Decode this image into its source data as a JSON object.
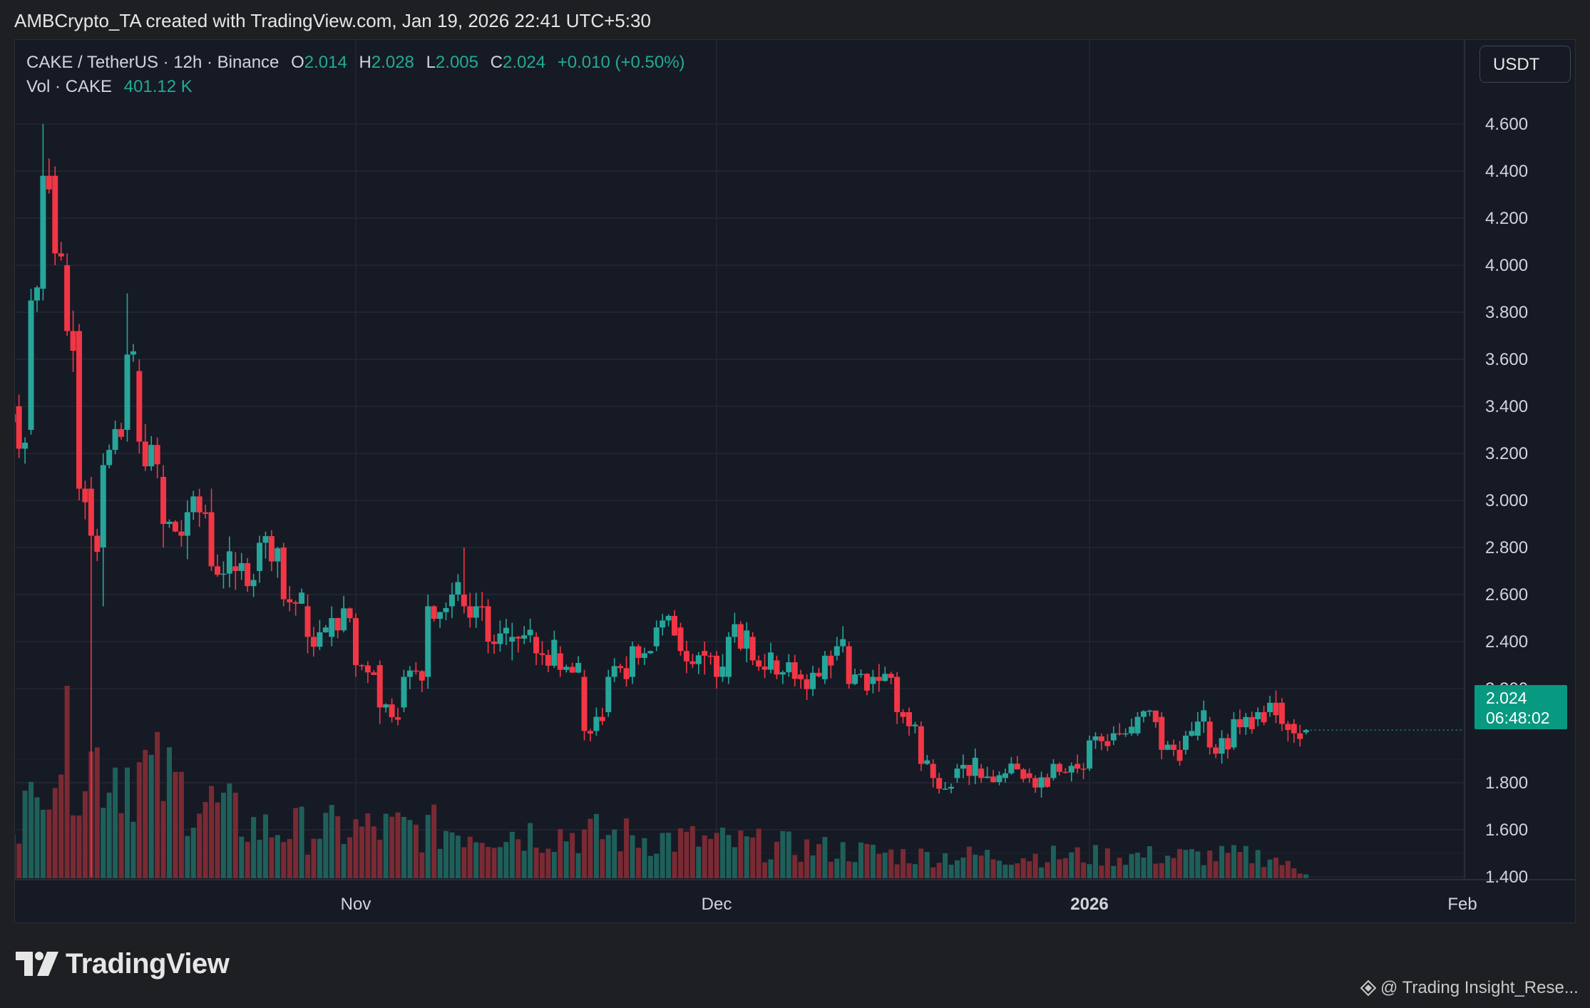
{
  "header": {
    "attribution": "AMBCrypto_TA created with TradingView.com, Jan 19, 2026 22:41 UTC+5:30"
  },
  "legend": {
    "symbol": "CAKE / TetherUS · 12h · Binance",
    "o_label": "O",
    "o_value": "2.014",
    "h_label": "H",
    "h_value": "2.028",
    "l_label": "L",
    "l_value": "2.005",
    "c_label": "C",
    "c_value": "2.024",
    "change": "+0.010 (+0.50%)",
    "vol_label": "Vol · CAKE",
    "vol_value": "401.12 K"
  },
  "toolbar": {
    "unit_label": "USDT"
  },
  "last_price": {
    "price": "2.024",
    "countdown": "06:48:02"
  },
  "footer": {
    "brand": "TradingView",
    "credit": "@ Trading Insight_Rese..."
  },
  "colors": {
    "up": "#26a69a",
    "down": "#f23645",
    "background": "#161a25",
    "grid": "#232735",
    "price_tag": "#089981"
  },
  "icons": {
    "logo": "tradingview-logo-icon",
    "credit": "diamond-icon"
  },
  "chart_data": {
    "type": "candlestick",
    "interval": "12h",
    "y_axis": {
      "ticks": [
        "4.600",
        "4.400",
        "4.200",
        "4.000",
        "3.800",
        "3.600",
        "3.400",
        "3.200",
        "3.000",
        "2.800",
        "2.600",
        "2.400",
        "2.200",
        "1.800",
        "1.600",
        "1.400"
      ],
      "range": [
        1.2,
        4.8
      ]
    },
    "x_axis": {
      "labels": [
        "Nov",
        "Dec",
        "2026",
        "Feb"
      ]
    },
    "ohlc_anchors": [
      {
        "date": "2025-10-02",
        "open": 3.72,
        "high": 3.8,
        "low": 3.38,
        "close": 3.42
      },
      {
        "date": "2025-10-04",
        "open": 3.4,
        "high": 3.45,
        "low": 3.18,
        "close": 3.22
      },
      {
        "date": "2025-10-05",
        "open": 3.3,
        "high": 3.9,
        "low": 3.28,
        "close": 3.85
      },
      {
        "date": "2025-10-06",
        "open": 3.9,
        "high": 4.6,
        "low": 3.85,
        "close": 4.38
      },
      {
        "date": "2025-10-07",
        "open": 4.38,
        "high": 4.42,
        "low": 4.0,
        "close": 4.05
      },
      {
        "date": "2025-10-08",
        "open": 4.0,
        "high": 4.05,
        "low": 3.7,
        "close": 3.72
      },
      {
        "date": "2025-10-09",
        "open": 3.72,
        "high": 3.75,
        "low": 3.0,
        "close": 3.05
      },
      {
        "date": "2025-10-10",
        "open": 3.05,
        "high": 3.1,
        "low": 1.4,
        "close": 2.85
      },
      {
        "date": "2025-10-11",
        "open": 2.8,
        "high": 3.2,
        "low": 2.55,
        "close": 3.15
      },
      {
        "date": "2025-10-13",
        "open": 3.3,
        "high": 3.88,
        "low": 3.25,
        "close": 3.62
      },
      {
        "date": "2025-10-14",
        "open": 3.55,
        "high": 3.6,
        "low": 3.2,
        "close": 3.25
      },
      {
        "date": "2025-10-16",
        "open": 3.1,
        "high": 3.15,
        "low": 2.8,
        "close": 2.9
      },
      {
        "date": "2025-10-18",
        "open": 2.85,
        "high": 3.0,
        "low": 2.75,
        "close": 2.95
      },
      {
        "date": "2025-10-20",
        "open": 2.95,
        "high": 3.05,
        "low": 2.7,
        "close": 2.72
      },
      {
        "date": "2025-10-22",
        "open": 2.72,
        "high": 2.78,
        "low": 2.62,
        "close": 2.7
      },
      {
        "date": "2025-10-24",
        "open": 2.7,
        "high": 2.85,
        "low": 2.65,
        "close": 2.82
      },
      {
        "date": "2025-10-26",
        "open": 2.8,
        "high": 2.82,
        "low": 2.55,
        "close": 2.58
      },
      {
        "date": "2025-10-28",
        "open": 2.55,
        "high": 2.6,
        "low": 2.35,
        "close": 2.42
      },
      {
        "date": "2025-10-30",
        "open": 2.42,
        "high": 2.55,
        "low": 2.38,
        "close": 2.5
      },
      {
        "date": "2025-11-01",
        "open": 2.5,
        "high": 2.52,
        "low": 2.25,
        "close": 2.3
      },
      {
        "date": "2025-11-03",
        "open": 2.3,
        "high": 2.32,
        "low": 2.05,
        "close": 2.12
      },
      {
        "date": "2025-11-05",
        "open": 2.12,
        "high": 2.28,
        "low": 2.1,
        "close": 2.25
      },
      {
        "date": "2025-11-07",
        "open": 2.25,
        "high": 2.6,
        "low": 2.2,
        "close": 2.55
      },
      {
        "date": "2025-11-09",
        "open": 2.55,
        "high": 2.65,
        "low": 2.5,
        "close": 2.6
      },
      {
        "date": "2025-11-10",
        "open": 2.6,
        "high": 2.8,
        "low": 2.52,
        "close": 2.55
      },
      {
        "date": "2025-11-12",
        "open": 2.55,
        "high": 2.58,
        "low": 2.35,
        "close": 2.4
      },
      {
        "date": "2025-11-14",
        "open": 2.4,
        "high": 2.48,
        "low": 2.32,
        "close": 2.42
      },
      {
        "date": "2025-11-16",
        "open": 2.42,
        "high": 2.44,
        "low": 2.3,
        "close": 2.35
      },
      {
        "date": "2025-11-18",
        "open": 2.35,
        "high": 2.38,
        "low": 2.25,
        "close": 2.28
      },
      {
        "date": "2025-11-20",
        "open": 2.25,
        "high": 2.28,
        "low": 1.98,
        "close": 2.02
      },
      {
        "date": "2025-11-21",
        "open": 2.02,
        "high": 2.12,
        "low": 2.0,
        "close": 2.08
      },
      {
        "date": "2025-11-22",
        "open": 2.1,
        "high": 2.28,
        "low": 2.08,
        "close": 2.25
      },
      {
        "date": "2025-11-24",
        "open": 2.25,
        "high": 2.4,
        "low": 2.22,
        "close": 2.38
      },
      {
        "date": "2025-11-26",
        "open": 2.38,
        "high": 2.49,
        "low": 2.36,
        "close": 2.46
      },
      {
        "date": "2025-11-28",
        "open": 2.46,
        "high": 2.48,
        "low": 2.34,
        "close": 2.36
      },
      {
        "date": "2025-11-30",
        "open": 2.36,
        "high": 2.4,
        "low": 2.26,
        "close": 2.34
      },
      {
        "date": "2025-12-01",
        "open": 2.34,
        "high": 2.36,
        "low": 2.2,
        "close": 2.25
      },
      {
        "date": "2025-12-02",
        "open": 2.25,
        "high": 2.44,
        "low": 2.22,
        "close": 2.42
      },
      {
        "date": "2025-12-04",
        "open": 2.42,
        "high": 2.44,
        "low": 2.3,
        "close": 2.32
      },
      {
        "date": "2025-12-06",
        "open": 2.32,
        "high": 2.34,
        "low": 2.24,
        "close": 2.26
      },
      {
        "date": "2025-12-08",
        "open": 2.26,
        "high": 2.28,
        "low": 2.2,
        "close": 2.24
      },
      {
        "date": "2025-12-10",
        "open": 2.24,
        "high": 2.36,
        "low": 2.22,
        "close": 2.34
      },
      {
        "date": "2025-12-11",
        "open": 2.34,
        "high": 2.42,
        "low": 2.32,
        "close": 2.38
      },
      {
        "date": "2025-12-12",
        "open": 2.38,
        "high": 2.4,
        "low": 2.2,
        "close": 2.22
      },
      {
        "date": "2025-12-14",
        "open": 2.22,
        "high": 2.28,
        "low": 2.18,
        "close": 2.25
      },
      {
        "date": "2025-12-16",
        "open": 2.25,
        "high": 2.27,
        "low": 2.05,
        "close": 2.1
      },
      {
        "date": "2025-12-17",
        "open": 2.1,
        "high": 2.12,
        "low": 2.0,
        "close": 2.04
      },
      {
        "date": "2025-12-18",
        "open": 2.04,
        "high": 2.06,
        "low": 1.85,
        "close": 1.88
      },
      {
        "date": "2025-12-19",
        "open": 1.88,
        "high": 1.9,
        "low": 1.78,
        "close": 1.82
      },
      {
        "date": "2025-12-21",
        "open": 1.82,
        "high": 1.88,
        "low": 1.8,
        "close": 1.86
      },
      {
        "date": "2025-12-23",
        "open": 1.86,
        "high": 1.88,
        "low": 1.8,
        "close": 1.82
      },
      {
        "date": "2025-12-25",
        "open": 1.82,
        "high": 1.86,
        "low": 1.8,
        "close": 1.84
      },
      {
        "date": "2025-12-27",
        "open": 1.84,
        "high": 1.86,
        "low": 1.8,
        "close": 1.82
      },
      {
        "date": "2025-12-29",
        "open": 1.82,
        "high": 1.9,
        "low": 1.81,
        "close": 1.88
      },
      {
        "date": "2025-12-31",
        "open": 1.88,
        "high": 1.92,
        "low": 1.84,
        "close": 1.86
      },
      {
        "date": "2026-01-01",
        "open": 1.86,
        "high": 2.0,
        "low": 1.85,
        "close": 1.98
      },
      {
        "date": "2026-01-03",
        "open": 1.98,
        "high": 2.04,
        "low": 1.96,
        "close": 2.01
      },
      {
        "date": "2026-01-05",
        "open": 2.01,
        "high": 2.1,
        "low": 2.0,
        "close": 2.08
      },
      {
        "date": "2026-01-07",
        "open": 2.08,
        "high": 2.1,
        "low": 1.9,
        "close": 1.94
      },
      {
        "date": "2026-01-09",
        "open": 1.94,
        "high": 2.02,
        "low": 1.92,
        "close": 2.0
      },
      {
        "date": "2026-01-10",
        "open": 2.0,
        "high": 2.1,
        "low": 1.98,
        "close": 2.06
      },
      {
        "date": "2026-01-11",
        "open": 2.06,
        "high": 2.08,
        "low": 1.92,
        "close": 1.95
      },
      {
        "date": "2026-01-13",
        "open": 1.95,
        "high": 2.1,
        "low": 1.94,
        "close": 2.07
      },
      {
        "date": "2026-01-15",
        "open": 2.07,
        "high": 2.12,
        "low": 2.04,
        "close": 2.1
      },
      {
        "date": "2026-01-16",
        "open": 2.1,
        "high": 2.17,
        "low": 2.08,
        "close": 2.14
      },
      {
        "date": "2026-01-17",
        "open": 2.14,
        "high": 2.16,
        "low": 2.02,
        "close": 2.05
      },
      {
        "date": "2026-01-18",
        "open": 2.05,
        "high": 2.07,
        "low": 1.97,
        "close": 2.01
      },
      {
        "date": "2026-01-19",
        "open": 2.014,
        "high": 2.028,
        "low": 2.005,
        "close": 2.024
      }
    ],
    "volume_peaks": [
      {
        "date": "2025-10-06",
        "value": 1.0
      },
      {
        "date": "2025-10-10",
        "value": 0.85
      },
      {
        "date": "2025-10-14",
        "value": 0.78
      },
      {
        "date": "2025-10-24",
        "value": 0.35
      },
      {
        "date": "2025-11-10",
        "value": 0.35
      },
      {
        "date": "2025-11-22",
        "value": 0.31
      },
      {
        "date": "2025-12-18",
        "value": 0.16
      },
      {
        "date": "2026-01-16",
        "value": 0.16
      },
      {
        "date": "2026-01-19",
        "value": 0.02
      }
    ]
  }
}
